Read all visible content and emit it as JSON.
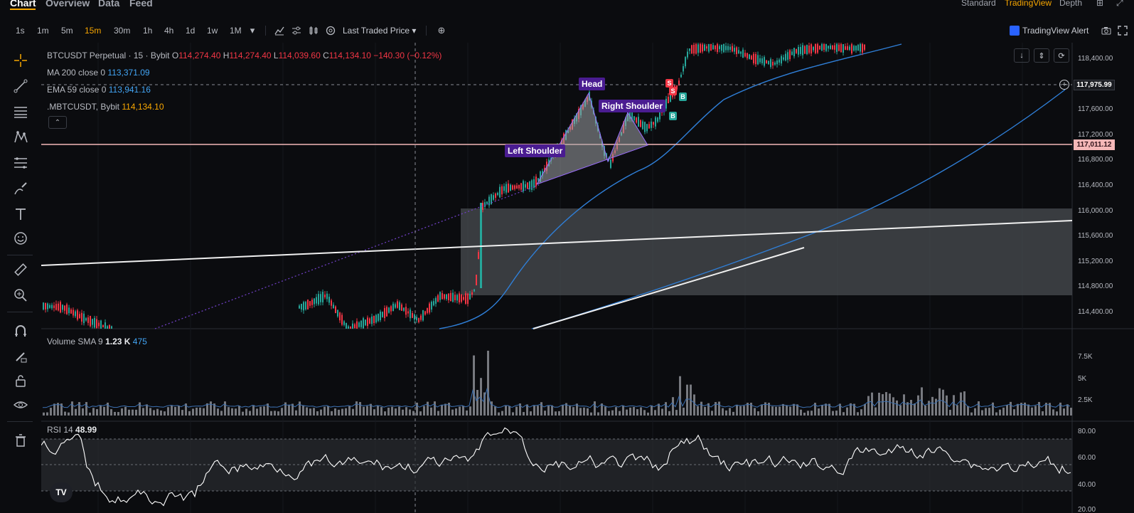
{
  "nav": {
    "tabs": [
      "Chart",
      "Overview",
      "Data",
      "Feed"
    ],
    "right": [
      "Standard",
      "TradingView",
      "Depth"
    ]
  },
  "toolbar": {
    "timeframes": [
      "1s",
      "1m",
      "5m",
      "15m",
      "30m",
      "1h",
      "4h",
      "1d",
      "1w",
      "1M"
    ],
    "active_timeframe": "15m",
    "price_type": "Last Traded Price",
    "alert_label": "TradingView Alert"
  },
  "sidebar": {
    "tools": [
      "crosshair-icon",
      "trend-line-icon",
      "horizontal-lines-icon",
      "pattern-icon",
      "fib-icon",
      "brush-icon",
      "text-icon",
      "emoji-icon",
      "ruler-icon",
      "zoom-icon",
      "magnet-icon",
      "lock-pen-icon",
      "lock-icon",
      "eye-icon",
      "trash-icon"
    ]
  },
  "legend": {
    "symbol": "BTCUSDT Perpetual · 15 · Bybit",
    "o_label": "O",
    "o_val": "114,274.40",
    "h_label": "H",
    "h_val": "114,274.40",
    "l_label": "L",
    "l_val": "114,039.60",
    "c_label": "C",
    "c_val": "114,134.10",
    "change": "−140.30 (−0.12%)",
    "ma200_label": "MA 200 close 0",
    "ma200_val": "113,371.09",
    "ema59_label": "EMA 59 close 0",
    "ema59_val": "113,941.16",
    "mbtc_label": ".MBTCUSDT, Bybit",
    "mbtc_val": "114,134.10",
    "volume_label": "Volume SMA 9",
    "volume_val": "1.23 K",
    "volume_sma": "475",
    "rsi_label": "RSI 14",
    "rsi_val": "48.99"
  },
  "annotations": {
    "head": "Head",
    "left_shoulder": "Left Shoulder",
    "right_shoulder": "Right Shoulder",
    "sell_marker": "S",
    "buy_marker": "B"
  },
  "price_axis": {
    "ticks": [
      "118,400.00",
      "117,600.00",
      "117,200.00",
      "116,800.00",
      "116,400.00",
      "116,000.00",
      "115,600.00",
      "115,200.00",
      "114,800.00",
      "114,400.00"
    ],
    "crosshair_price": "117,975.99",
    "line_price": "117,011.12"
  },
  "volume_axis": {
    "ticks": [
      "7.5K",
      "5K",
      "2.5K"
    ]
  },
  "rsi_axis": {
    "ticks": [
      "80.00",
      "60.00",
      "40.00",
      "20.00"
    ]
  },
  "logo_text": "TV",
  "colors": {
    "up": "#26a69a",
    "down": "#f23645",
    "ma200": "#2f7fd8",
    "accent": "#f7a600",
    "pattern_label_bg": "#4a1c91",
    "horizontal_line": "#f5b8b8"
  }
}
